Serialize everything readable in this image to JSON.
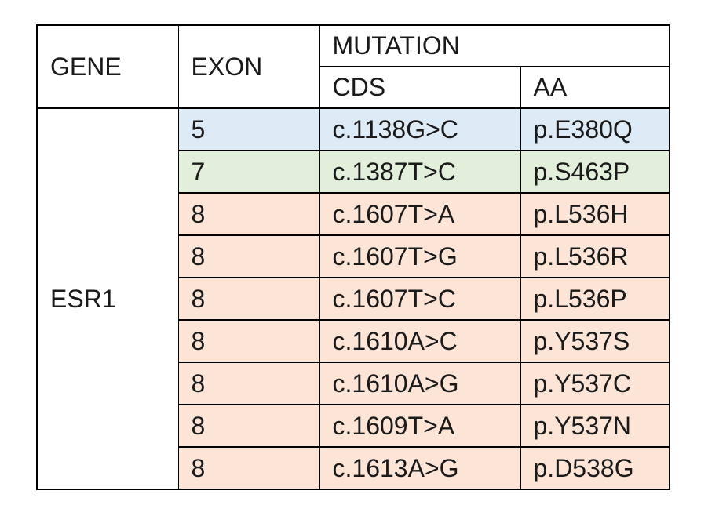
{
  "table": {
    "headers": {
      "gene": "GENE",
      "exon": "EXON",
      "mutation": "MUTATION",
      "cds": "CDS",
      "aa": "AA"
    },
    "gene_name": "ESR1",
    "rows": [
      {
        "exon": "5",
        "cds": "c.1138G>C",
        "aa": "p.E380Q",
        "fill": "#ddebf7"
      },
      {
        "exon": "7",
        "cds": "c.1387T>C",
        "aa": "p.S463P",
        "fill": "#e2efda"
      },
      {
        "exon": "8",
        "cds": "c.1607T>A",
        "aa": "p.L536H",
        "fill": "#fce4d6"
      },
      {
        "exon": "8",
        "cds": "c.1607T>G",
        "aa": "p.L536R",
        "fill": "#fce4d6"
      },
      {
        "exon": "8",
        "cds": "c.1607T>C",
        "aa": "p.L536P",
        "fill": "#fce4d6"
      },
      {
        "exon": "8",
        "cds": "c.1610A>C",
        "aa": "p.Y537S",
        "fill": "#fce4d6"
      },
      {
        "exon": "8",
        "cds": "c.1610A>G",
        "aa": "p.Y537C",
        "fill": "#fce4d6"
      },
      {
        "exon": "8",
        "cds": "c.1609T>A",
        "aa": "p.Y537N",
        "fill": "#fce4d6"
      },
      {
        "exon": "8",
        "cds": "c.1613A>G",
        "aa": "p.D538G",
        "fill": "#fce4d6"
      }
    ],
    "colors": {
      "exon5_fill": "#ddebf7",
      "exon7_fill": "#e2efda",
      "exon8_fill": "#fce4d6",
      "header_fill": "#ffffff",
      "gene_fill": "#ffffff",
      "border": "#000000",
      "text": "#1a1a1a"
    }
  }
}
